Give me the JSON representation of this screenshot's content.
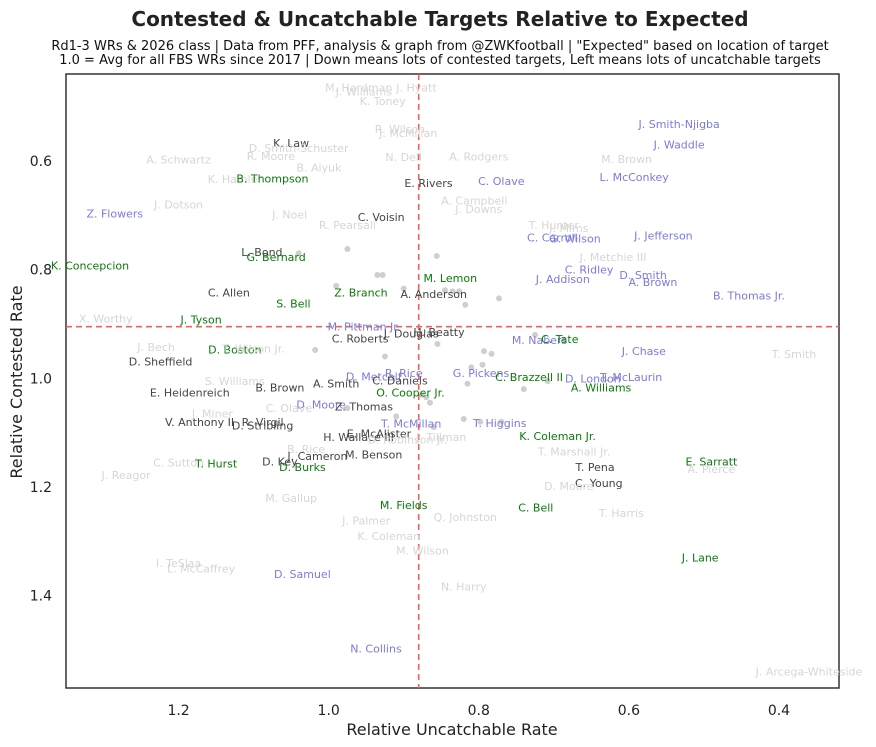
{
  "chart_data": {
    "type": "scatter",
    "title": "Contested & Uncatchable Targets Relative to Expected",
    "subtitle_lines": [
      "Rd1-3 WRs & 2026 class | Data from PFF, analysis & graph from @ZWKfootball | \"Expected\" based on location of target",
      "1.0 = Avg for all FBS WRs since 2017 | Down means lots of contested targets, Left means lots of uncatchable targets"
    ],
    "xlabel": "Relative Uncatchable Rate",
    "ylabel": "Relative Contested Rate",
    "xlim": [
      1.35,
      0.32
    ],
    "ylim": [
      1.57,
      0.44
    ],
    "x_ticks": [
      {
        "v": 1.2,
        "label": "1.2"
      },
      {
        "v": 1.0,
        "label": "1.0"
      },
      {
        "v": 0.8,
        "label": "0.8"
      },
      {
        "v": 0.6,
        "label": "0.6"
      },
      {
        "v": 0.4,
        "label": "0.4"
      }
    ],
    "y_ticks": [
      {
        "v": 0.6,
        "label": "0.6"
      },
      {
        "v": 0.8,
        "label": "0.8"
      },
      {
        "v": 1.0,
        "label": "1.0"
      },
      {
        "v": 1.2,
        "label": "1.2"
      },
      {
        "v": 1.4,
        "label": "1.4"
      }
    ],
    "ref_x": 0.88,
    "ref_y": 0.905,
    "colors": {
      "gray": "#d6d6d6",
      "dark": "#444444",
      "blue": "#7b7bdc",
      "green": "#0a7a0a",
      "dot": "#cfcfcf",
      "ref": "#f06060"
    },
    "dots": [
      {
        "x": 1.04,
        "y": 0.77
      },
      {
        "x": 0.975,
        "y": 0.762
      },
      {
        "x": 0.935,
        "y": 0.81
      },
      {
        "x": 0.928,
        "y": 0.81
      },
      {
        "x": 0.856,
        "y": 0.775
      },
      {
        "x": 0.845,
        "y": 0.838
      },
      {
        "x": 0.835,
        "y": 0.84
      },
      {
        "x": 0.826,
        "y": 0.84
      },
      {
        "x": 0.818,
        "y": 0.865
      },
      {
        "x": 0.773,
        "y": 0.853
      },
      {
        "x": 0.9,
        "y": 0.835
      },
      {
        "x": 1.018,
        "y": 0.948
      },
      {
        "x": 0.925,
        "y": 0.96
      },
      {
        "x": 0.855,
        "y": 0.937
      },
      {
        "x": 0.793,
        "y": 0.95
      },
      {
        "x": 0.783,
        "y": 0.955
      },
      {
        "x": 0.795,
        "y": 0.975
      },
      {
        "x": 0.81,
        "y": 0.98
      },
      {
        "x": 0.815,
        "y": 1.01
      },
      {
        "x": 0.74,
        "y": 1.02
      },
      {
        "x": 0.708,
        "y": 1.005
      },
      {
        "x": 0.865,
        "y": 1.045
      },
      {
        "x": 0.87,
        "y": 1.035
      },
      {
        "x": 0.876,
        "y": 1.03
      },
      {
        "x": 0.82,
        "y": 1.075
      },
      {
        "x": 0.798,
        "y": 1.08
      },
      {
        "x": 0.77,
        "y": 1.08
      },
      {
        "x": 0.99,
        "y": 0.83
      },
      {
        "x": 0.86,
        "y": 1.09
      },
      {
        "x": 0.91,
        "y": 1.07
      },
      {
        "x": 0.975,
        "y": 1.055
      },
      {
        "x": 0.725,
        "y": 0.92
      }
    ],
    "points": [
      {
        "label": "M. Hardman",
        "x": 0.96,
        "y": 0.465,
        "c": "gray"
      },
      {
        "label": "J. Williams",
        "x": 0.953,
        "y": 0.472,
        "c": "gray"
      },
      {
        "label": "J. Hyatt",
        "x": 0.883,
        "y": 0.465,
        "c": "gray"
      },
      {
        "label": "K. Toney",
        "x": 0.928,
        "y": 0.49,
        "c": "gray"
      },
      {
        "label": "J. Smith-Njigba",
        "x": 0.533,
        "y": 0.532,
        "c": "blue"
      },
      {
        "label": "J. Waddle",
        "x": 0.533,
        "y": 0.57,
        "c": "blue"
      },
      {
        "label": "R. Wilson",
        "x": 0.905,
        "y": 0.541,
        "c": "gray"
      },
      {
        "label": "J. McMillan",
        "x": 0.894,
        "y": 0.549,
        "c": "gray"
      },
      {
        "label": "K. Law",
        "x": 1.05,
        "y": 0.567,
        "c": "dark"
      },
      {
        "label": "D. Smith-Schuster",
        "x": 1.04,
        "y": 0.576,
        "c": "gray"
      },
      {
        "label": "A. Schwartz",
        "x": 1.2,
        "y": 0.597,
        "c": "gray"
      },
      {
        "label": "R. Moore",
        "x": 1.077,
        "y": 0.591,
        "c": "gray"
      },
      {
        "label": "N. Dell",
        "x": 0.9,
        "y": 0.593,
        "c": "gray"
      },
      {
        "label": "A. Rodgers",
        "x": 0.8,
        "y": 0.592,
        "c": "gray"
      },
      {
        "label": "M. Brown",
        "x": 0.603,
        "y": 0.596,
        "c": "gray"
      },
      {
        "label": "B. Aiyuk",
        "x": 1.013,
        "y": 0.612,
        "c": "gray"
      },
      {
        "label": "K. Hamler",
        "x": 1.125,
        "y": 0.633,
        "c": "gray"
      },
      {
        "label": "B. Thompson",
        "x": 1.075,
        "y": 0.632,
        "c": "green"
      },
      {
        "label": "E. Rivers",
        "x": 0.867,
        "y": 0.641,
        "c": "dark"
      },
      {
        "label": "C. Olave",
        "x": 0.77,
        "y": 0.637,
        "c": "blue"
      },
      {
        "label": "L. McConkey",
        "x": 0.593,
        "y": 0.63,
        "c": "blue"
      },
      {
        "label": "J. Dotson",
        "x": 1.2,
        "y": 0.68,
        "c": "gray"
      },
      {
        "label": "Z. Flowers",
        "x": 1.285,
        "y": 0.697,
        "c": "blue"
      },
      {
        "label": "A. Campbell",
        "x": 0.806,
        "y": 0.673,
        "c": "gray"
      },
      {
        "label": "J. Downs",
        "x": 0.8,
        "y": 0.688,
        "c": "gray"
      },
      {
        "label": "J. Noel",
        "x": 1.052,
        "y": 0.699,
        "c": "gray"
      },
      {
        "label": "C. Voisin",
        "x": 0.93,
        "y": 0.703,
        "c": "dark"
      },
      {
        "label": "R. Pearsall",
        "x": 0.975,
        "y": 0.718,
        "c": "gray"
      },
      {
        "label": "T. Hunter",
        "x": 0.7,
        "y": 0.718,
        "c": "gray"
      },
      {
        "label": "J. Mims",
        "x": 0.68,
        "y": 0.723,
        "c": "gray"
      },
      {
        "label": "C. Carroll",
        "x": 0.702,
        "y": 0.741,
        "c": "blue"
      },
      {
        "label": "G. Wilson",
        "x": 0.672,
        "y": 0.743,
        "c": "blue"
      },
      {
        "label": "J. Jefferson",
        "x": 0.554,
        "y": 0.737,
        "c": "blue"
      },
      {
        "label": "L. Bond",
        "x": 1.089,
        "y": 0.768,
        "c": "dark"
      },
      {
        "label": "G. Bernard",
        "x": 1.07,
        "y": 0.777,
        "c": "green"
      },
      {
        "label": "J. Metchie III",
        "x": 0.621,
        "y": 0.777,
        "c": "gray"
      },
      {
        "label": "K. Concepcion",
        "x": 1.318,
        "y": 0.792,
        "c": "green"
      },
      {
        "label": "C. Ridley",
        "x": 0.653,
        "y": 0.8,
        "c": "blue"
      },
      {
        "label": "D. Smith",
        "x": 0.581,
        "y": 0.81,
        "c": "blue"
      },
      {
        "label": "M. Lemon",
        "x": 0.838,
        "y": 0.815,
        "c": "green"
      },
      {
        "label": "J. Addison",
        "x": 0.688,
        "y": 0.817,
        "c": "blue"
      },
      {
        "label": "A. Brown",
        "x": 0.568,
        "y": 0.823,
        "c": "blue"
      },
      {
        "label": "C. Allen",
        "x": 1.133,
        "y": 0.842,
        "c": "dark"
      },
      {
        "label": "Z. Branch",
        "x": 0.957,
        "y": 0.842,
        "c": "green"
      },
      {
        "label": "A. Anderson",
        "x": 0.86,
        "y": 0.845,
        "c": "dark"
      },
      {
        "label": "B. Thomas Jr.",
        "x": 0.44,
        "y": 0.848,
        "c": "blue"
      },
      {
        "label": "S. Bell",
        "x": 1.047,
        "y": 0.862,
        "c": "green"
      },
      {
        "label": "X. Worthy",
        "x": 1.297,
        "y": 0.89,
        "c": "gray"
      },
      {
        "label": "J. Tyson",
        "x": 1.17,
        "y": 0.892,
        "c": "green"
      },
      {
        "label": "M. Pittman Jr.",
        "x": 0.953,
        "y": 0.905,
        "c": "blue"
      },
      {
        "label": "J. Douglas",
        "x": 0.89,
        "y": 0.918,
        "c": "dark"
      },
      {
        "label": "H. Beatty",
        "x": 0.853,
        "y": 0.915,
        "c": "dark"
      },
      {
        "label": "C. Roberts",
        "x": 0.958,
        "y": 0.927,
        "c": "dark"
      },
      {
        "label": "M. Nabers",
        "x": 0.719,
        "y": 0.93,
        "c": "blue"
      },
      {
        "label": "C. Tate",
        "x": 0.692,
        "y": 0.928,
        "c": "green"
      },
      {
        "label": "J. Bech",
        "x": 1.23,
        "y": 0.942,
        "c": "gray"
      },
      {
        "label": "D. Boston",
        "x": 1.125,
        "y": 0.947,
        "c": "green"
      },
      {
        "label": "T. Wilson Jr.",
        "x": 1.1,
        "y": 0.945,
        "c": "gray"
      },
      {
        "label": "J. Chase",
        "x": 0.58,
        "y": 0.95,
        "c": "blue"
      },
      {
        "label": "T. Smith",
        "x": 0.38,
        "y": 0.955,
        "c": "gray"
      },
      {
        "label": "D. Sheffield",
        "x": 1.224,
        "y": 0.969,
        "c": "dark"
      },
      {
        "label": "R. Rice",
        "x": 0.9,
        "y": 0.99,
        "c": "blue"
      },
      {
        "label": "G. Pickens",
        "x": 0.797,
        "y": 0.99,
        "c": "blue"
      },
      {
        "label": "D. Metcalf",
        "x": 0.94,
        "y": 0.997,
        "c": "blue"
      },
      {
        "label": "C. Brazzell II",
        "x": 0.733,
        "y": 0.998,
        "c": "green"
      },
      {
        "label": "D. London",
        "x": 0.648,
        "y": 1.0,
        "c": "blue"
      },
      {
        "label": "T. McLaurin",
        "x": 0.597,
        "y": 0.998,
        "c": "blue"
      },
      {
        "label": "S. Williams",
        "x": 1.125,
        "y": 1.005,
        "c": "gray"
      },
      {
        "label": "C. Daniels",
        "x": 0.905,
        "y": 1.004,
        "c": "dark"
      },
      {
        "label": "A. Smith",
        "x": 0.99,
        "y": 1.01,
        "c": "dark"
      },
      {
        "label": "B. Brown",
        "x": 1.065,
        "y": 1.017,
        "c": "dark"
      },
      {
        "label": "A. Williams",
        "x": 0.637,
        "y": 1.017,
        "c": "green"
      },
      {
        "label": "E. Heidenreich",
        "x": 1.185,
        "y": 1.026,
        "c": "dark"
      },
      {
        "label": "O. Cooper Jr.",
        "x": 0.891,
        "y": 1.026,
        "c": "green"
      },
      {
        "label": "D. Moore",
        "x": 1.01,
        "y": 1.048,
        "c": "blue"
      },
      {
        "label": "Z. Thomas",
        "x": 0.953,
        "y": 1.052,
        "c": "dark"
      },
      {
        "label": "C. Olave",
        "x": 1.053,
        "y": 1.055,
        "c": "gray"
      },
      {
        "label": "J. Miner",
        "x": 1.155,
        "y": 1.065,
        "c": "gray"
      },
      {
        "label": "V. Anthony II",
        "x": 1.172,
        "y": 1.08,
        "c": "dark"
      },
      {
        "label": "R. Virgil",
        "x": 1.088,
        "y": 1.08,
        "c": "dark"
      },
      {
        "label": "D. Stribling",
        "x": 1.088,
        "y": 1.087,
        "c": "dark"
      },
      {
        "label": "T. McMillan",
        "x": 0.89,
        "y": 1.083,
        "c": "blue"
      },
      {
        "label": "T. Higgins",
        "x": 0.772,
        "y": 1.082,
        "c": "blue"
      },
      {
        "label": "E. McAlister",
        "x": 0.933,
        "y": 1.102,
        "c": "dark"
      },
      {
        "label": "H. Wallace III",
        "x": 0.96,
        "y": 1.108,
        "c": "dark"
      },
      {
        "label": "D. Robinson Jr.",
        "x": 0.895,
        "y": 1.113,
        "c": "gray"
      },
      {
        "label": "J. Tillman",
        "x": 0.85,
        "y": 1.108,
        "c": "gray"
      },
      {
        "label": "K. Coleman Jr.",
        "x": 0.695,
        "y": 1.106,
        "c": "green"
      },
      {
        "label": "B. Rice",
        "x": 1.03,
        "y": 1.13,
        "c": "gray"
      },
      {
        "label": "T. Marshall Jr.",
        "x": 0.673,
        "y": 1.135,
        "c": "gray"
      },
      {
        "label": "J. Cameron",
        "x": 1.015,
        "y": 1.143,
        "c": "dark"
      },
      {
        "label": "M. Benson",
        "x": 0.94,
        "y": 1.14,
        "c": "dark"
      },
      {
        "label": "D. Key",
        "x": 1.065,
        "y": 1.153,
        "c": "dark"
      },
      {
        "label": "C. Sutton",
        "x": 1.2,
        "y": 1.155,
        "c": "gray"
      },
      {
        "label": "T. Hurst",
        "x": 1.15,
        "y": 1.157,
        "c": "green"
      },
      {
        "label": "E. Sarratt",
        "x": 0.49,
        "y": 1.153,
        "c": "green"
      },
      {
        "label": "D. Burks",
        "x": 1.035,
        "y": 1.163,
        "c": "green"
      },
      {
        "label": "T. Pena",
        "x": 0.645,
        "y": 1.163,
        "c": "dark"
      },
      {
        "label": "A. Pierce",
        "x": 0.49,
        "y": 1.167,
        "c": "gray"
      },
      {
        "label": "J. Reagor",
        "x": 1.27,
        "y": 1.178,
        "c": "gray"
      },
      {
        "label": "C. Young",
        "x": 0.64,
        "y": 1.193,
        "c": "dark"
      },
      {
        "label": "D. Moore",
        "x": 0.68,
        "y": 1.198,
        "c": "gray"
      },
      {
        "label": "M. Gallup",
        "x": 1.05,
        "y": 1.22,
        "c": "gray"
      },
      {
        "label": "M. Fields",
        "x": 0.9,
        "y": 1.233,
        "c": "green"
      },
      {
        "label": "C. Bell",
        "x": 0.724,
        "y": 1.238,
        "c": "green"
      },
      {
        "label": "T. Harris",
        "x": 0.61,
        "y": 1.248,
        "c": "gray"
      },
      {
        "label": "Q. Johnston",
        "x": 0.818,
        "y": 1.255,
        "c": "gray"
      },
      {
        "label": "J. Palmer",
        "x": 0.95,
        "y": 1.262,
        "c": "gray"
      },
      {
        "label": "K. Coleman",
        "x": 0.92,
        "y": 1.29,
        "c": "gray"
      },
      {
        "label": "M. Wilson",
        "x": 0.875,
        "y": 1.317,
        "c": "gray"
      },
      {
        "label": "J. Lane",
        "x": 0.505,
        "y": 1.33,
        "c": "green"
      },
      {
        "label": "I. TeSlaa",
        "x": 1.2,
        "y": 1.34,
        "c": "gray"
      },
      {
        "label": "L. McCaffrey",
        "x": 1.17,
        "y": 1.35,
        "c": "gray"
      },
      {
        "label": "D. Samuel",
        "x": 1.035,
        "y": 1.36,
        "c": "blue"
      },
      {
        "label": "N. Harry",
        "x": 0.82,
        "y": 1.383,
        "c": "gray"
      },
      {
        "label": "N. Collins",
        "x": 0.937,
        "y": 1.497,
        "c": "blue"
      },
      {
        "label": "J. Arcega-Whiteside",
        "x": 0.36,
        "y": 1.54,
        "c": "gray"
      }
    ]
  }
}
